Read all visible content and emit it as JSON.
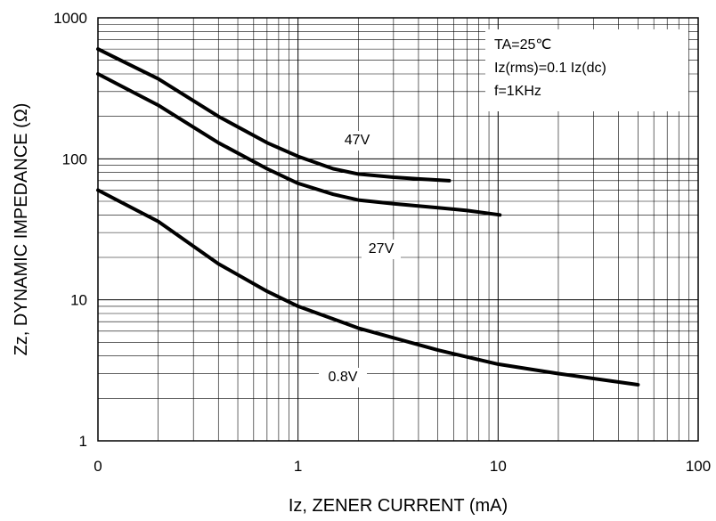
{
  "chart_data": {
    "type": "line",
    "title": "",
    "xlabel": "Iz, ZENER CURRENT (mA)",
    "ylabel": "Zz, DYNAMIC IMPEDANCE (Ω)",
    "xscale": "log",
    "yscale": "log",
    "xlim": [
      0.1,
      100
    ],
    "ylim": [
      1,
      1000
    ],
    "grid": true,
    "x_tick_labels": [
      "0",
      "1",
      "10",
      "100"
    ],
    "y_tick_labels": [
      "1",
      "10",
      "100",
      "1000"
    ],
    "conditions": [
      "TA=25℃",
      "Iz(rms)=0.1 Iz(dc)",
      "f=1KHz"
    ],
    "series": [
      {
        "name": "47V",
        "x": [
          0.1,
          0.2,
          0.4,
          0.7,
          1.0,
          1.5,
          2.0,
          3.0,
          4.0,
          5.7
        ],
        "y": [
          600,
          370,
          200,
          130,
          104,
          85,
          78,
          74,
          72,
          70
        ]
      },
      {
        "name": "27V",
        "x": [
          0.1,
          0.2,
          0.4,
          0.7,
          1.0,
          1.5,
          2.0,
          3.0,
          5.0,
          7.0,
          10.2
        ],
        "y": [
          400,
          240,
          130,
          85,
          67,
          56,
          51,
          48,
          45,
          43,
          40
        ]
      },
      {
        "name": "0.8V",
        "x": [
          0.1,
          0.2,
          0.4,
          0.7,
          1.0,
          2.0,
          5.0,
          10.0,
          20.0,
          50.0
        ],
        "y": [
          60,
          36,
          18,
          11.5,
          9,
          6.3,
          4.4,
          3.5,
          3.0,
          2.5
        ]
      }
    ]
  }
}
